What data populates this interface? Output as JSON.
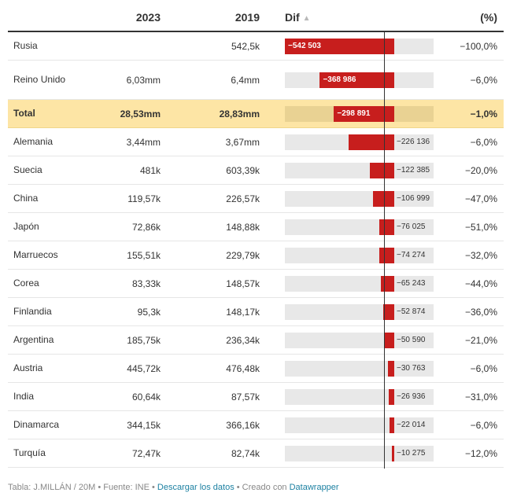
{
  "header": {
    "col_2023": "2023",
    "col_2019": "2019",
    "col_dif": "Dif",
    "col_pct": "(%)",
    "sort_icon": "triangle-up-icon"
  },
  "chart_data": {
    "type": "table",
    "columns": [
      "",
      "2023",
      "2019",
      "Dif",
      "(%)"
    ],
    "rows": [
      {
        "name": "Rusia",
        "v2023": "",
        "v2019": "542,5k",
        "dif": -542503,
        "dif_label": "−542 503",
        "pct": "−100,0%"
      },
      {
        "name": "Reino Unido",
        "v2023": "6,03mm",
        "v2019": "6,4mm",
        "dif": -368986,
        "dif_label": "−368 986",
        "pct": "−6,0%"
      },
      {
        "name": "Total",
        "v2023": "28,53mm",
        "v2019": "28,83mm",
        "dif": -298891,
        "dif_label": "−298 891",
        "pct": "−1,0%",
        "highlight": true
      },
      {
        "name": "Alemania",
        "v2023": "3,44mm",
        "v2019": "3,67mm",
        "dif": -226136,
        "dif_label": "−226 136",
        "pct": "−6,0%"
      },
      {
        "name": "Suecia",
        "v2023": "481k",
        "v2019": "603,39k",
        "dif": -122385,
        "dif_label": "−122 385",
        "pct": "−20,0%"
      },
      {
        "name": "China",
        "v2023": "119,57k",
        "v2019": "226,57k",
        "dif": -106999,
        "dif_label": "−106 999",
        "pct": "−47,0%"
      },
      {
        "name": "Japón",
        "v2023": "72,86k",
        "v2019": "148,88k",
        "dif": -76025,
        "dif_label": "−76 025",
        "pct": "−51,0%"
      },
      {
        "name": "Marruecos",
        "v2023": "155,51k",
        "v2019": "229,79k",
        "dif": -74274,
        "dif_label": "−74 274",
        "pct": "−32,0%"
      },
      {
        "name": "Corea",
        "v2023": "83,33k",
        "v2019": "148,57k",
        "dif": -65243,
        "dif_label": "−65 243",
        "pct": "−44,0%"
      },
      {
        "name": "Finlandia",
        "v2023": "95,3k",
        "v2019": "148,17k",
        "dif": -52874,
        "dif_label": "−52 874",
        "pct": "−36,0%"
      },
      {
        "name": "Argentina",
        "v2023": "185,75k",
        "v2019": "236,34k",
        "dif": -50590,
        "dif_label": "−50 590",
        "pct": "−21,0%"
      },
      {
        "name": "Austria",
        "v2023": "445,72k",
        "v2019": "476,48k",
        "dif": -30763,
        "dif_label": "−30 763",
        "pct": "−6,0%"
      },
      {
        "name": "India",
        "v2023": "60,64k",
        "v2019": "87,57k",
        "dif": -26936,
        "dif_label": "−26 936",
        "pct": "−31,0%"
      },
      {
        "name": "Dinamarca",
        "v2023": "344,15k",
        "v2019": "366,16k",
        "dif": -22014,
        "dif_label": "−22 014",
        "pct": "−6,0%"
      },
      {
        "name": "Turquía",
        "v2023": "72,47k",
        "v2019": "82,74k",
        "dif": -10275,
        "dif_label": "−10 275",
        "pct": "−12,0%"
      }
    ],
    "dif_range": [
      -542503,
      195000
    ]
  },
  "colors": {
    "bar": "#c71e1d",
    "highlight": "#fde5a5",
    "link": "#1d81a2"
  },
  "footer": {
    "prefix": "Tabla: J.MILLÁN / 20M • Fuente: INE • ",
    "download_link": "Descargar los datos",
    "middle": " • Creado con ",
    "created_link": "Datawrapper"
  }
}
